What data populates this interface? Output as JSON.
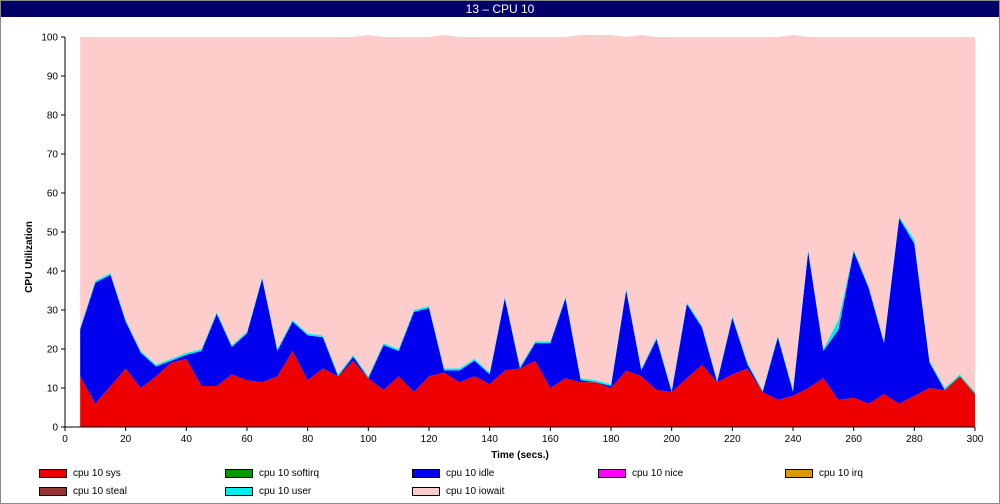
{
  "window": {
    "title": "13 – CPU 10"
  },
  "colors": {
    "sys": "#ee0000",
    "softirq": "#009900",
    "idle": "#0000ee",
    "nice": "#ff00ff",
    "irq": "#dd9900",
    "steal": "#993333",
    "user": "#00eeee",
    "iowait": "#ffcccc"
  },
  "chart_data": {
    "type": "area",
    "stacked": true,
    "xlabel": "Time (secs.)",
    "ylabel": "CPU Utilization",
    "xlim": [
      0,
      300
    ],
    "ylim": [
      0,
      100
    ],
    "xticks": [
      0,
      20,
      40,
      60,
      80,
      100,
      120,
      140,
      160,
      180,
      200,
      220,
      240,
      260,
      280,
      300
    ],
    "yticks": [
      0,
      10,
      20,
      30,
      40,
      50,
      60,
      70,
      80,
      90,
      100
    ],
    "grid": false,
    "legend_position": "bottom",
    "x": [
      5,
      10,
      15,
      20,
      25,
      30,
      35,
      40,
      45,
      50,
      55,
      60,
      65,
      70,
      75,
      80,
      85,
      90,
      95,
      100,
      105,
      110,
      115,
      120,
      125,
      130,
      135,
      140,
      145,
      150,
      155,
      160,
      165,
      170,
      175,
      180,
      185,
      190,
      195,
      200,
      205,
      210,
      215,
      220,
      225,
      230,
      235,
      240,
      245,
      250,
      255,
      260,
      265,
      270,
      275,
      280,
      285,
      290,
      295,
      300
    ],
    "series": [
      {
        "name": "cpu 10 sys",
        "color_key": "sys",
        "values": [
          13,
          6,
          10.5,
          15,
          10,
          13,
          16.5,
          17.5,
          10.5,
          10.5,
          13.5,
          12,
          11.5,
          13,
          19.5,
          12,
          15,
          13,
          17,
          12.5,
          9.5,
          13,
          9,
          13,
          14,
          11.5,
          13,
          11,
          14.5,
          15,
          17,
          10,
          12.5,
          11.5,
          11.5,
          10,
          14.5,
          13,
          9.5,
          9,
          12.5,
          16,
          11.5,
          13.5,
          15,
          9,
          7,
          8,
          10,
          12.5,
          7,
          7.5,
          6,
          8.5,
          6,
          8,
          10,
          9.5,
          13,
          8.5
        ]
      },
      {
        "name": "cpu 10 softirq",
        "color_key": "softirq",
        "values": [
          0,
          0,
          0,
          0,
          0,
          0,
          0,
          0,
          0,
          0,
          0,
          0,
          0,
          0,
          0,
          0,
          0,
          0,
          0,
          0,
          0,
          0,
          0,
          0,
          0,
          0,
          0,
          0,
          0,
          0,
          0,
          0,
          0,
          0,
          0,
          0,
          0,
          0,
          0,
          0,
          0,
          0,
          0,
          0,
          0,
          0,
          0,
          0,
          0,
          0,
          0,
          0,
          0,
          0,
          0,
          0,
          0,
          0,
          0,
          0
        ]
      },
      {
        "name": "cpu 10 idle",
        "color_key": "idle",
        "values": [
          12,
          31,
          28.5,
          12,
          9,
          2.5,
          0.5,
          1,
          9,
          18.5,
          7,
          12,
          26.5,
          6.5,
          7.5,
          11.5,
          8,
          0,
          1,
          0,
          11.5,
          6.5,
          20.5,
          17.5,
          0.5,
          3,
          4,
          2.5,
          18.5,
          0,
          4.5,
          11.5,
          20.5,
          0.5,
          0,
          0.5,
          20.5,
          1.5,
          13,
          0,
          19,
          9.5,
          0,
          14.5,
          1,
          0,
          16,
          1,
          35,
          7,
          18,
          37.5,
          29.5,
          13,
          47.5,
          39,
          6.5,
          0,
          0,
          0
        ]
      },
      {
        "name": "cpu 10 nice",
        "color_key": "nice",
        "values": [
          0,
          0,
          0,
          0,
          0,
          0,
          0,
          0,
          0,
          0,
          0,
          0,
          0,
          0,
          0,
          0,
          0,
          0,
          0,
          0,
          0,
          0,
          0,
          0,
          0,
          0,
          0,
          0,
          0,
          0,
          0,
          0,
          0,
          0,
          0,
          0,
          0,
          0,
          0,
          0,
          0,
          0,
          0,
          0,
          0,
          0,
          0,
          0,
          0,
          0,
          0,
          0,
          0,
          0,
          0,
          0,
          0,
          0,
          0,
          0
        ]
      },
      {
        "name": "cpu 10 irq",
        "color_key": "irq",
        "values": [
          0,
          0,
          0,
          0,
          0,
          0,
          0,
          0,
          0,
          0,
          0,
          0,
          0,
          0,
          0,
          0,
          0,
          0,
          0,
          0,
          0,
          0,
          0,
          0,
          0,
          0,
          0,
          0,
          0,
          0,
          0,
          0,
          0,
          0,
          0,
          0,
          0,
          0,
          0,
          0,
          0,
          0,
          0,
          0,
          0,
          0,
          0,
          0,
          0,
          0,
          0,
          0,
          0,
          0,
          0,
          0,
          0,
          0,
          0,
          0
        ]
      },
      {
        "name": "cpu 10 steal",
        "color_key": "steal",
        "values": [
          0,
          0,
          0,
          0,
          0,
          0,
          0,
          0,
          0,
          0,
          0,
          0,
          0,
          0,
          0,
          0,
          0,
          0,
          0,
          0,
          0,
          0,
          0,
          0,
          0,
          0,
          0,
          0,
          0,
          0,
          0,
          0,
          0,
          0,
          0,
          0,
          0,
          0,
          0,
          0,
          0,
          0,
          0,
          0,
          0,
          0,
          0,
          0,
          0,
          0,
          0,
          0,
          0,
          0,
          0,
          0,
          0,
          0,
          0,
          0
        ]
      },
      {
        "name": "cpu 10 user",
        "color_key": "user",
        "values": [
          0.5,
          0.5,
          0.5,
          0.5,
          0.5,
          0.5,
          0.5,
          0.5,
          0.5,
          0.5,
          0.5,
          0.5,
          0.5,
          0.5,
          0.5,
          0.5,
          0.5,
          0.5,
          0.5,
          0.5,
          0.5,
          0.5,
          0.5,
          0.5,
          0.5,
          0.5,
          0.5,
          0.5,
          0.5,
          0.5,
          0.5,
          0.5,
          0.5,
          0.5,
          0.5,
          0.5,
          0.5,
          0.5,
          0.5,
          0.5,
          0.5,
          0.5,
          0.5,
          0.5,
          0.5,
          0.5,
          0.5,
          0.5,
          0.5,
          0.5,
          2.5,
          0.5,
          0.5,
          0.5,
          0.5,
          1,
          0.5,
          0.5,
          0.5,
          0.5
        ]
      },
      {
        "name": "cpu 10 iowait",
        "color_key": "iowait",
        "values": [
          74.5,
          62.5,
          60.5,
          72.5,
          80.5,
          84,
          82.5,
          81,
          80,
          70.5,
          79,
          75.5,
          61.5,
          80,
          72.5,
          76,
          76.5,
          86.5,
          81.5,
          87.5,
          78.5,
          80,
          70,
          69,
          85.5,
          85,
          82.5,
          86,
          66.5,
          84.5,
          78,
          78,
          66.5,
          88,
          88.5,
          89.5,
          64.5,
          85.5,
          77,
          90.5,
          68,
          74,
          88,
          71.5,
          83.5,
          90.5,
          76.5,
          91,
          54.5,
          80,
          72.5,
          54.5,
          64,
          78,
          46,
          52,
          83,
          90,
          86.5,
          91
        ]
      }
    ]
  }
}
